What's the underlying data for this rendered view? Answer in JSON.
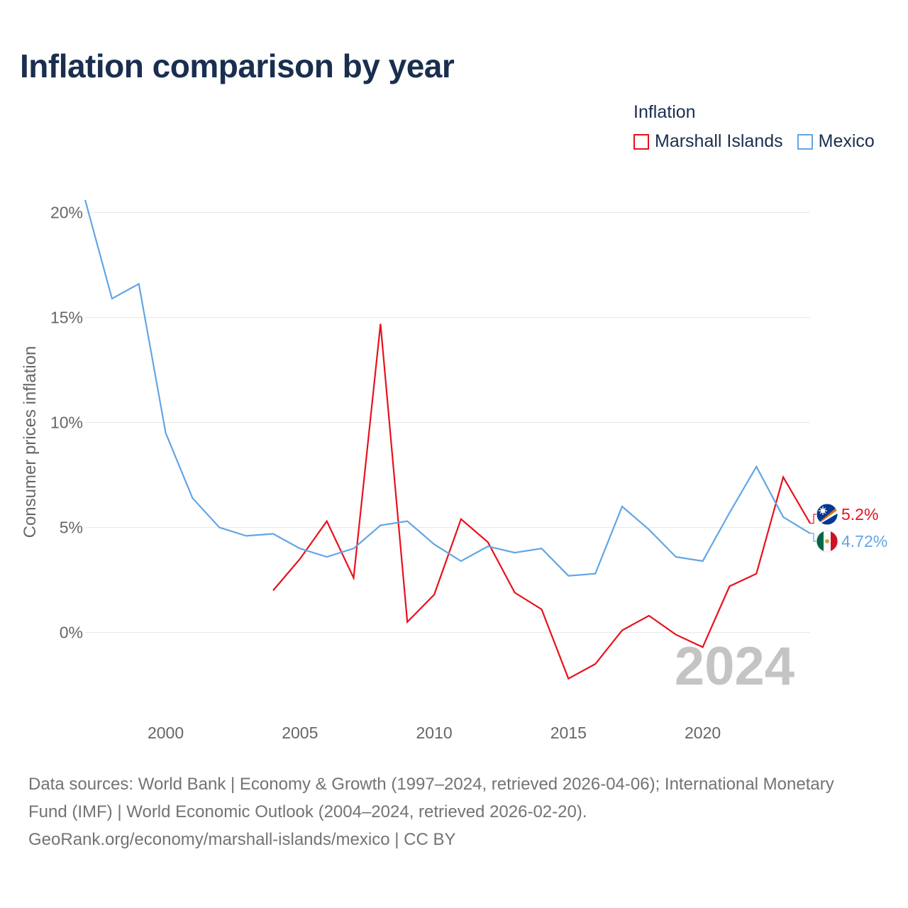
{
  "title": "Inflation comparison by year",
  "legend": {
    "title": "Inflation",
    "items": [
      {
        "label": "Marshall Islands",
        "color": "#e8111b"
      },
      {
        "label": "Mexico",
        "color": "#62a6e4"
      }
    ]
  },
  "source": {
    "line1": "Data sources: World Bank | Economy & Growth (1997–2024, retrieved 2026-04-06); International Monetary Fund (IMF) | World Economic Outlook (2004–2024, retrieved 2026-02-20).",
    "line2": "GeoRank.org/economy/marshall-islands/mexico | CC BY"
  },
  "chart_data": {
    "type": "line",
    "title": "Inflation comparison by year",
    "ylabel": "Consumer prices inflation",
    "xlabel": "",
    "xlim": [
      1997,
      2024
    ],
    "ylim": [
      -4,
      21
    ],
    "x_ticks": [
      2000,
      2005,
      2010,
      2015,
      2020
    ],
    "y_ticks": [
      0,
      5,
      10,
      15,
      20
    ],
    "y_tick_labels": [
      "0%",
      "5%",
      "10%",
      "15%",
      "20%"
    ],
    "year_watermark": "2024",
    "grid": true,
    "series": [
      {
        "name": "Marshall Islands",
        "color": "#e8111b",
        "end_label": "5.2%",
        "icon": "marshall-islands-flag-icon",
        "x": [
          2004,
          2005,
          2006,
          2007,
          2008,
          2009,
          2010,
          2011,
          2012,
          2013,
          2014,
          2015,
          2016,
          2017,
          2018,
          2019,
          2020,
          2021,
          2022,
          2023,
          2024
        ],
        "values": [
          2.0,
          3.5,
          5.3,
          2.6,
          14.7,
          0.5,
          1.8,
          5.4,
          4.3,
          1.9,
          1.1,
          -2.2,
          -1.5,
          0.1,
          0.8,
          -0.1,
          -0.7,
          2.2,
          2.8,
          7.4,
          5.2
        ]
      },
      {
        "name": "Mexico",
        "color": "#62a6e4",
        "end_label": "4.72%",
        "icon": "mexico-flag-icon",
        "x": [
          1997,
          1998,
          1999,
          2000,
          2001,
          2002,
          2003,
          2004,
          2005,
          2006,
          2007,
          2008,
          2009,
          2010,
          2011,
          2012,
          2013,
          2014,
          2015,
          2016,
          2017,
          2018,
          2019,
          2020,
          2021,
          2022,
          2023,
          2024
        ],
        "values": [
          20.6,
          15.9,
          16.6,
          9.5,
          6.4,
          5.0,
          4.6,
          4.7,
          4.0,
          3.6,
          4.0,
          5.1,
          5.3,
          4.2,
          3.4,
          4.1,
          3.8,
          4.0,
          2.7,
          2.8,
          6.0,
          4.9,
          3.6,
          3.4,
          5.7,
          7.9,
          5.5,
          4.72
        ]
      }
    ]
  }
}
